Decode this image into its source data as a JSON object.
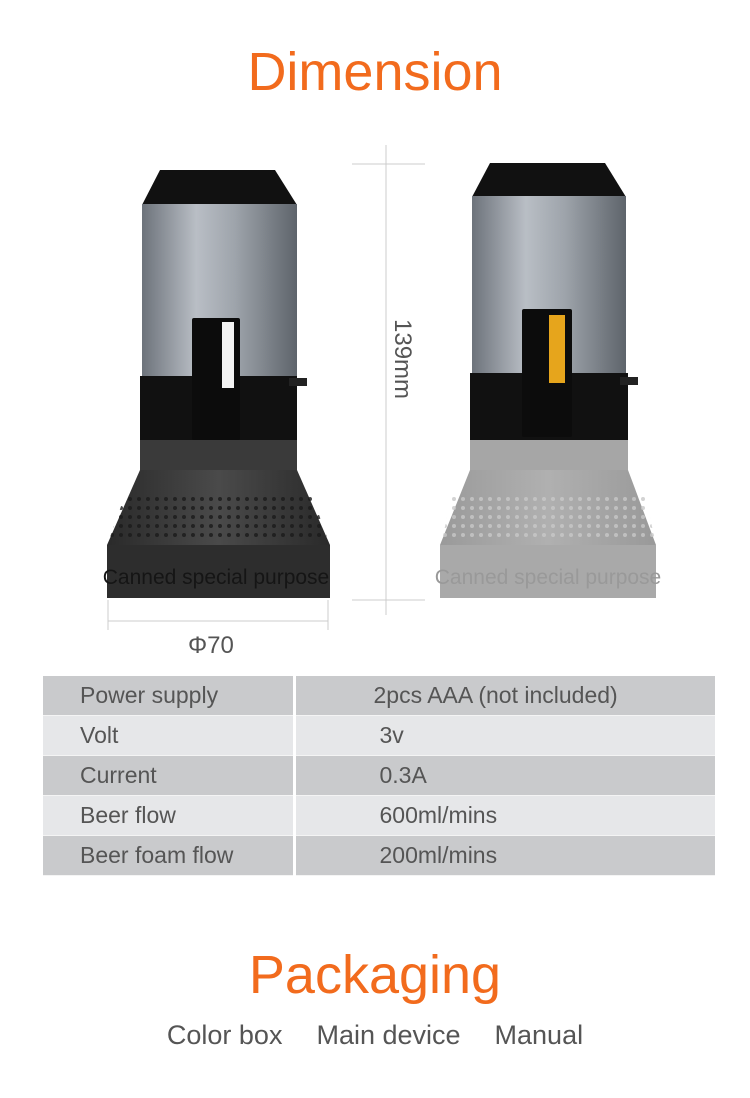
{
  "dimension": {
    "title": "Dimension",
    "height_label": "139mm",
    "diameter_label": "Φ70",
    "device_print": "Canned special purpose",
    "accent_color": "#f26b1d"
  },
  "specs": {
    "rows": [
      {
        "label": "Power supply",
        "value": "2pcs AAA (not included)"
      },
      {
        "label": "Volt",
        "value": "3v"
      },
      {
        "label": "Current",
        "value": "0.3A"
      },
      {
        "label": "Beer flow",
        "value": "600ml/mins"
      },
      {
        "label": "Beer foam flow",
        "value": "200ml/mins"
      }
    ]
  },
  "packaging": {
    "title": "Packaging",
    "items": [
      "Color box",
      "Main device",
      "Manual"
    ]
  }
}
